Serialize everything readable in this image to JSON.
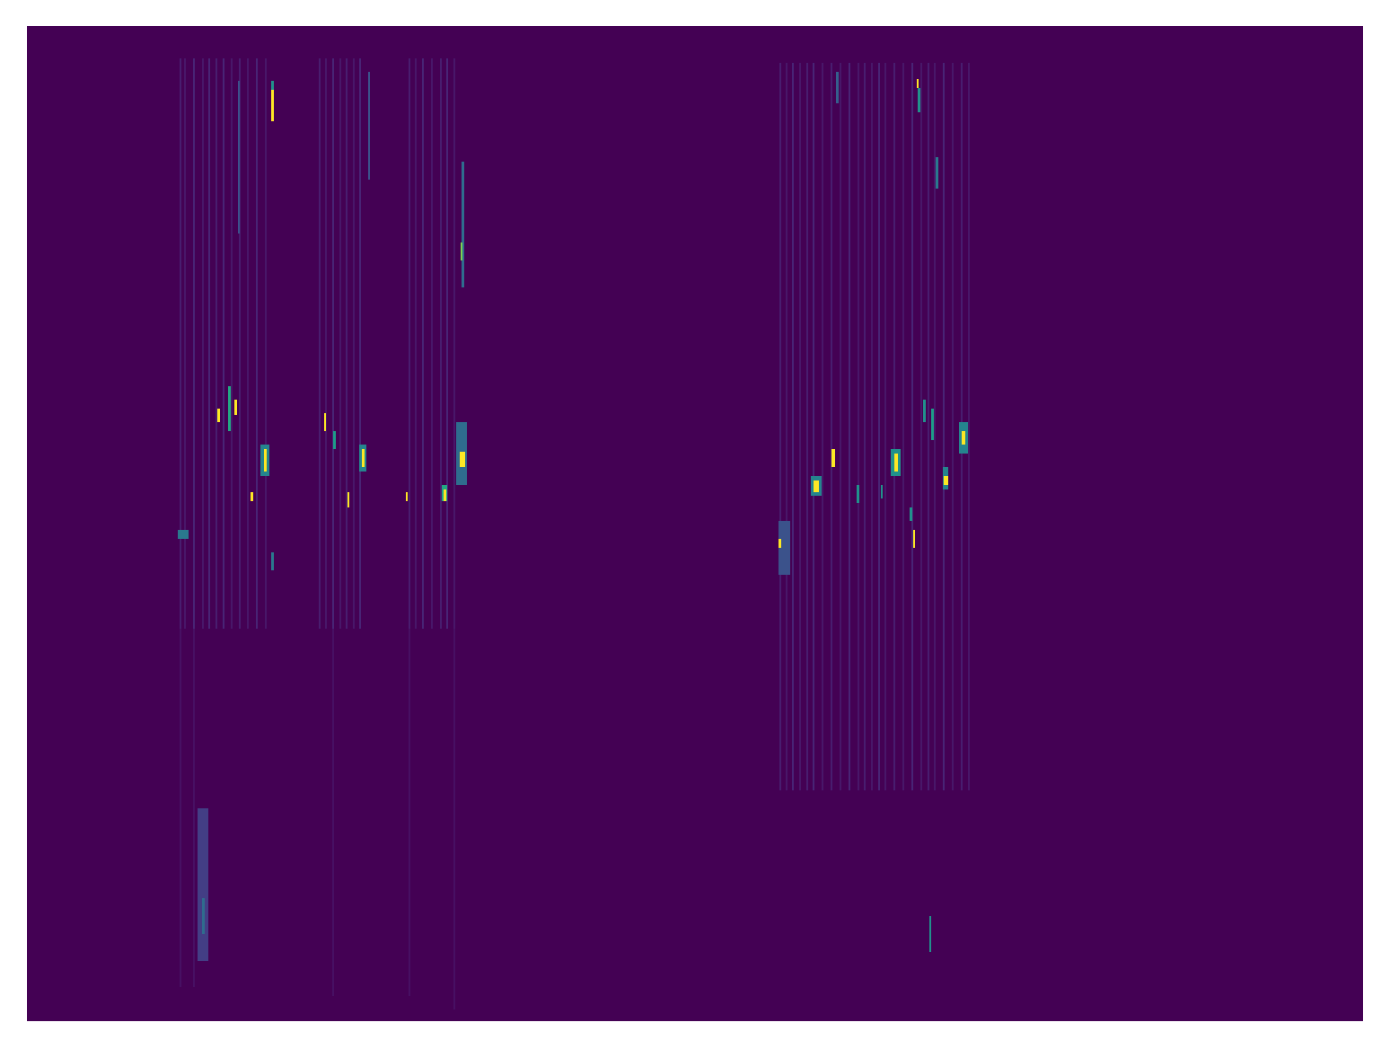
{
  "chart_data": {
    "type": "heatmap",
    "xlim": [
      0,
      1488
    ],
    "ylim": [
      1108,
      0
    ],
    "tick_labels": false,
    "color_range": [
      0,
      1
    ],
    "cells": [
      {
        "x0": 170,
        "x1": 172,
        "y0": 36,
        "y1": 671,
        "value": 0.08
      },
      {
        "x0": 175,
        "x1": 177,
        "y0": 36,
        "y1": 671,
        "value": 0.06
      },
      {
        "x0": 185,
        "x1": 187,
        "y0": 36,
        "y1": 671,
        "value": 0.1
      },
      {
        "x0": 195,
        "x1": 197,
        "y0": 36,
        "y1": 671,
        "value": 0.06
      },
      {
        "x0": 202,
        "x1": 204,
        "y0": 36,
        "y1": 671,
        "value": 0.1
      },
      {
        "x0": 210,
        "x1": 212,
        "y0": 36,
        "y1": 671,
        "value": 0.08
      },
      {
        "x0": 218,
        "x1": 220,
        "y0": 36,
        "y1": 671,
        "value": 0.1
      },
      {
        "x0": 227,
        "x1": 229,
        "y0": 36,
        "y1": 671,
        "value": 0.06
      },
      {
        "x0": 236,
        "x1": 238,
        "y0": 36,
        "y1": 671,
        "value": 0.08
      },
      {
        "x0": 245,
        "x1": 247,
        "y0": 36,
        "y1": 671,
        "value": 0.06
      },
      {
        "x0": 255,
        "x1": 257,
        "y0": 36,
        "y1": 671,
        "value": 0.1
      },
      {
        "x0": 265,
        "x1": 267,
        "y0": 36,
        "y1": 671,
        "value": 0.06
      },
      {
        "x0": 325,
        "x1": 327,
        "y0": 36,
        "y1": 671,
        "value": 0.08
      },
      {
        "x0": 332,
        "x1": 334,
        "y0": 36,
        "y1": 671,
        "value": 0.06
      },
      {
        "x0": 340,
        "x1": 342,
        "y0": 36,
        "y1": 671,
        "value": 0.1
      },
      {
        "x0": 348,
        "x1": 350,
        "y0": 36,
        "y1": 671,
        "value": 0.06
      },
      {
        "x0": 355,
        "x1": 357,
        "y0": 36,
        "y1": 671,
        "value": 0.08
      },
      {
        "x0": 363,
        "x1": 365,
        "y0": 36,
        "y1": 671,
        "value": 0.06
      },
      {
        "x0": 370,
        "x1": 372,
        "y0": 36,
        "y1": 671,
        "value": 0.1
      },
      {
        "x0": 425,
        "x1": 427,
        "y0": 36,
        "y1": 671,
        "value": 0.08
      },
      {
        "x0": 432,
        "x1": 434,
        "y0": 36,
        "y1": 671,
        "value": 0.06
      },
      {
        "x0": 440,
        "x1": 442,
        "y0": 36,
        "y1": 671,
        "value": 0.1
      },
      {
        "x0": 450,
        "x1": 452,
        "y0": 36,
        "y1": 671,
        "value": 0.06
      },
      {
        "x0": 460,
        "x1": 462,
        "y0": 36,
        "y1": 671,
        "value": 0.08
      },
      {
        "x0": 467,
        "x1": 469,
        "y0": 36,
        "y1": 671,
        "value": 0.1
      },
      {
        "x0": 475,
        "x1": 477,
        "y0": 36,
        "y1": 671,
        "value": 0.06
      },
      {
        "x0": 170,
        "x1": 172,
        "y0": 671,
        "y1": 1070,
        "value": 0.04
      },
      {
        "x0": 185,
        "x1": 187,
        "y0": 671,
        "y1": 1070,
        "value": 0.04
      },
      {
        "x0": 340,
        "x1": 342,
        "y0": 671,
        "y1": 1080,
        "value": 0.04
      },
      {
        "x0": 425,
        "x1": 427,
        "y0": 671,
        "y1": 1080,
        "value": 0.04
      },
      {
        "x0": 475,
        "x1": 477,
        "y0": 671,
        "y1": 1095,
        "value": 0.04
      },
      {
        "x0": 838,
        "x1": 840,
        "y0": 41,
        "y1": 851,
        "value": 0.08
      },
      {
        "x0": 845,
        "x1": 847,
        "y0": 41,
        "y1": 851,
        "value": 0.06
      },
      {
        "x0": 852,
        "x1": 854,
        "y0": 41,
        "y1": 851,
        "value": 0.1
      },
      {
        "x0": 860,
        "x1": 862,
        "y0": 41,
        "y1": 851,
        "value": 0.06
      },
      {
        "x0": 868,
        "x1": 870,
        "y0": 41,
        "y1": 851,
        "value": 0.08
      },
      {
        "x0": 875,
        "x1": 877,
        "y0": 41,
        "y1": 851,
        "value": 0.1
      },
      {
        "x0": 885,
        "x1": 887,
        "y0": 41,
        "y1": 851,
        "value": 0.06
      },
      {
        "x0": 895,
        "x1": 897,
        "y0": 41,
        "y1": 851,
        "value": 0.08
      },
      {
        "x0": 905,
        "x1": 907,
        "y0": 41,
        "y1": 851,
        "value": 0.06
      },
      {
        "x0": 915,
        "x1": 917,
        "y0": 41,
        "y1": 851,
        "value": 0.1
      },
      {
        "x0": 925,
        "x1": 927,
        "y0": 41,
        "y1": 851,
        "value": 0.06
      },
      {
        "x0": 932,
        "x1": 934,
        "y0": 41,
        "y1": 851,
        "value": 0.08
      },
      {
        "x0": 940,
        "x1": 942,
        "y0": 41,
        "y1": 851,
        "value": 0.06
      },
      {
        "x0": 948,
        "x1": 950,
        "y0": 41,
        "y1": 851,
        "value": 0.1
      },
      {
        "x0": 955,
        "x1": 957,
        "y0": 41,
        "y1": 851,
        "value": 0.06
      },
      {
        "x0": 965,
        "x1": 967,
        "y0": 41,
        "y1": 851,
        "value": 0.08
      },
      {
        "x0": 975,
        "x1": 977,
        "y0": 41,
        "y1": 851,
        "value": 0.06
      },
      {
        "x0": 985,
        "x1": 987,
        "y0": 41,
        "y1": 851,
        "value": 0.1
      },
      {
        "x0": 995,
        "x1": 997,
        "y0": 41,
        "y1": 851,
        "value": 0.06
      },
      {
        "x0": 1003,
        "x1": 1005,
        "y0": 41,
        "y1": 851,
        "value": 0.08
      },
      {
        "x0": 1010,
        "x1": 1012,
        "y0": 41,
        "y1": 851,
        "value": 0.06
      },
      {
        "x0": 1020,
        "x1": 1022,
        "y0": 41,
        "y1": 851,
        "value": 0.1
      },
      {
        "x0": 1030,
        "x1": 1032,
        "y0": 41,
        "y1": 851,
        "value": 0.06
      },
      {
        "x0": 1040,
        "x1": 1042,
        "y0": 41,
        "y1": 851,
        "value": 0.08
      },
      {
        "x0": 1048,
        "x1": 1050,
        "y0": 41,
        "y1": 851,
        "value": 0.06
      },
      {
        "x0": 272,
        "x1": 275,
        "y0": 61,
        "y1": 86,
        "value": 0.5
      },
      {
        "x0": 272,
        "x1": 275,
        "y0": 71,
        "y1": 106,
        "value": 1
      },
      {
        "x0": 235,
        "x1": 237,
        "y0": 61,
        "y1": 231,
        "value": 0.25
      },
      {
        "x0": 380,
        "x1": 382,
        "y0": 51,
        "y1": 171,
        "value": 0.25
      },
      {
        "x0": 484,
        "x1": 487,
        "y0": 151,
        "y1": 291,
        "value": 0.35
      },
      {
        "x0": 483,
        "x1": 485,
        "y0": 241,
        "y1": 261,
        "value": 0.8
      },
      {
        "x0": 212,
        "x1": 215,
        "y0": 426,
        "y1": 441,
        "value": 1
      },
      {
        "x0": 224,
        "x1": 227,
        "y0": 401,
        "y1": 451,
        "value": 0.6
      },
      {
        "x0": 231,
        "x1": 234,
        "y0": 416,
        "y1": 433,
        "value": 1
      },
      {
        "x0": 260,
        "x1": 270,
        "y0": 466,
        "y1": 501,
        "value": 0.45
      },
      {
        "x0": 264,
        "x1": 267,
        "y0": 471,
        "y1": 496,
        "value": 1
      },
      {
        "x0": 249,
        "x1": 252,
        "y0": 519,
        "y1": 529,
        "value": 1
      },
      {
        "x0": 331,
        "x1": 333,
        "y0": 431,
        "y1": 451,
        "value": 1
      },
      {
        "x0": 341,
        "x1": 344,
        "y0": 451,
        "y1": 471,
        "value": 0.55
      },
      {
        "x0": 370,
        "x1": 378,
        "y0": 466,
        "y1": 496,
        "value": 0.45
      },
      {
        "x0": 373,
        "x1": 376,
        "y0": 471,
        "y1": 491,
        "value": 1
      },
      {
        "x0": 357,
        "x1": 359,
        "y0": 519,
        "y1": 536,
        "value": 1
      },
      {
        "x0": 422,
        "x1": 424,
        "y0": 519,
        "y1": 529,
        "value": 1
      },
      {
        "x0": 462,
        "x1": 468,
        "y0": 511,
        "y1": 529,
        "value": 0.6
      },
      {
        "x0": 464,
        "x1": 467,
        "y0": 516,
        "y1": 529,
        "value": 1
      },
      {
        "x0": 478,
        "x1": 490,
        "y0": 441,
        "y1": 511,
        "value": 0.35
      },
      {
        "x0": 482,
        "x1": 488,
        "y0": 474,
        "y1": 491,
        "value": 1
      },
      {
        "x0": 168,
        "x1": 180,
        "y0": 561,
        "y1": 571,
        "value": 0.4
      },
      {
        "x0": 272,
        "x1": 275,
        "y0": 586,
        "y1": 606,
        "value": 0.4
      },
      {
        "x0": 190,
        "x1": 202,
        "y0": 871,
        "y1": 1041,
        "value": 0.18
      },
      {
        "x0": 195,
        "x1": 198,
        "y0": 971,
        "y1": 1011,
        "value": 0.35
      },
      {
        "x0": 992,
        "x1": 995,
        "y0": 69,
        "y1": 96,
        "value": 0.5
      },
      {
        "x0": 991,
        "x1": 993,
        "y0": 59,
        "y1": 69,
        "value": 1
      },
      {
        "x0": 1012,
        "x1": 1015,
        "y0": 146,
        "y1": 181,
        "value": 0.4
      },
      {
        "x0": 901,
        "x1": 904,
        "y0": 51,
        "y1": 86,
        "value": 0.3
      },
      {
        "x0": 873,
        "x1": 885,
        "y0": 501,
        "y1": 523,
        "value": 0.45
      },
      {
        "x0": 876,
        "x1": 882,
        "y0": 506,
        "y1": 519,
        "value": 1
      },
      {
        "x0": 896,
        "x1": 900,
        "y0": 471,
        "y1": 491,
        "value": 1
      },
      {
        "x0": 924,
        "x1": 927,
        "y0": 511,
        "y1": 531,
        "value": 0.5
      },
      {
        "x0": 951,
        "x1": 953,
        "y0": 511,
        "y1": 526,
        "value": 0.5
      },
      {
        "x0": 962,
        "x1": 973,
        "y0": 471,
        "y1": 501,
        "value": 0.5
      },
      {
        "x0": 966,
        "x1": 970,
        "y0": 476,
        "y1": 496,
        "value": 1
      },
      {
        "x0": 983,
        "x1": 986,
        "y0": 536,
        "y1": 551,
        "value": 0.5
      },
      {
        "x0": 987,
        "x1": 989,
        "y0": 561,
        "y1": 581,
        "value": 1
      },
      {
        "x0": 998,
        "x1": 1001,
        "y0": 416,
        "y1": 441,
        "value": 0.5
      },
      {
        "x0": 1007,
        "x1": 1010,
        "y0": 426,
        "y1": 461,
        "value": 0.55
      },
      {
        "x0": 1020,
        "x1": 1026,
        "y0": 491,
        "y1": 516,
        "value": 0.45
      },
      {
        "x0": 1021,
        "x1": 1026,
        "y0": 501,
        "y1": 511,
        "value": 1
      },
      {
        "x0": 1038,
        "x1": 1048,
        "y0": 441,
        "y1": 476,
        "value": 0.45
      },
      {
        "x0": 1041,
        "x1": 1045,
        "y0": 451,
        "y1": 466,
        "value": 1
      },
      {
        "x0": 837,
        "x1": 850,
        "y0": 551,
        "y1": 611,
        "value": 0.25
      },
      {
        "x0": 837,
        "x1": 840,
        "y0": 571,
        "y1": 581,
        "value": 1
      },
      {
        "x0": 1005,
        "x1": 1007,
        "y0": 991,
        "y1": 1031,
        "value": 0.5
      }
    ]
  }
}
